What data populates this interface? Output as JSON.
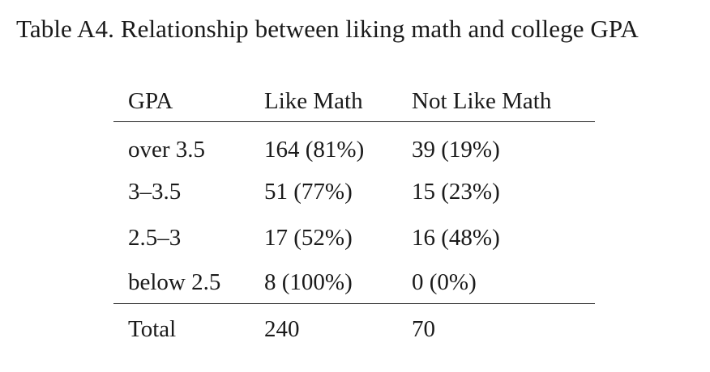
{
  "caption": "Table A4. Relationship between liking math and college GPA",
  "table": {
    "headers": [
      "GPA",
      "Like Math",
      "Not Like Math"
    ],
    "rows": [
      [
        "over 3.5",
        "164 (81%)",
        "39 (19%)"
      ],
      [
        "3–3.5",
        "51 (77%)",
        "15 (23%)"
      ],
      [
        "2.5–3",
        "17 (52%)",
        "16 (48%)"
      ],
      [
        "below 2.5",
        "8 (100%)",
        "0 (0%)"
      ]
    ],
    "total": [
      "Total",
      "240",
      "70"
    ]
  }
}
